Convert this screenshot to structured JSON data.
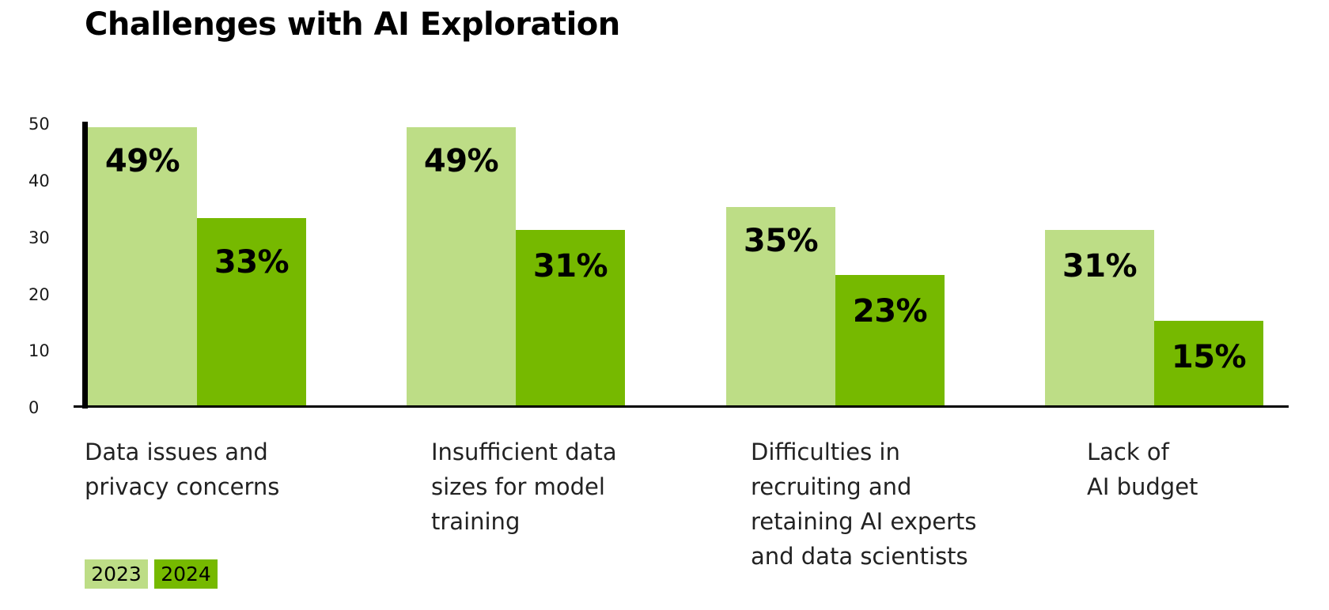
{
  "header": {
    "title": "Challenges with AI Exploration"
  },
  "legend": [
    {
      "label": "2023",
      "color": "#bddd86"
    },
    {
      "label": "2024",
      "color": "#76b900"
    }
  ],
  "yaxis": {
    "ticks": [
      "50",
      "40",
      "30",
      "20",
      "10",
      "0"
    ]
  },
  "categories": [
    {
      "lines": [
        "Data issues and",
        "privacy concerns"
      ],
      "v2023_label": "49%",
      "v2024_label": "33%"
    },
    {
      "lines": [
        "Insufficient data",
        "sizes for model",
        "training"
      ],
      "v2023_label": "49%",
      "v2024_label": "31%"
    },
    {
      "lines": [
        "Difficulties in",
        "recruiting and",
        "retaining AI experts",
        "and data scientists"
      ],
      "v2023_label": "35%",
      "v2024_label": "23%"
    },
    {
      "lines": [
        "Lack of",
        "AI budget"
      ],
      "v2023_label": "31%",
      "v2024_label": "15%"
    }
  ],
  "chart_data": {
    "type": "bar",
    "title": "Challenges with AI Exploration",
    "categories": [
      "Data issues and privacy concerns",
      "Insufficient data sizes for model training",
      "Difficulties in recruiting and retaining AI experts and data scientists",
      "Lack of AI budget"
    ],
    "series": [
      {
        "name": "2023",
        "color": "#bddd86",
        "values": [
          49,
          49,
          35,
          31
        ]
      },
      {
        "name": "2024",
        "color": "#76b900",
        "values": [
          33,
          31,
          23,
          15
        ]
      }
    ],
    "value_labels": "percent",
    "xlabel": "",
    "ylabel": "",
    "ylim": [
      0,
      50
    ],
    "yticks": [
      0,
      10,
      20,
      30,
      40,
      50
    ],
    "grid": false,
    "legend_position": "bottom-left"
  }
}
